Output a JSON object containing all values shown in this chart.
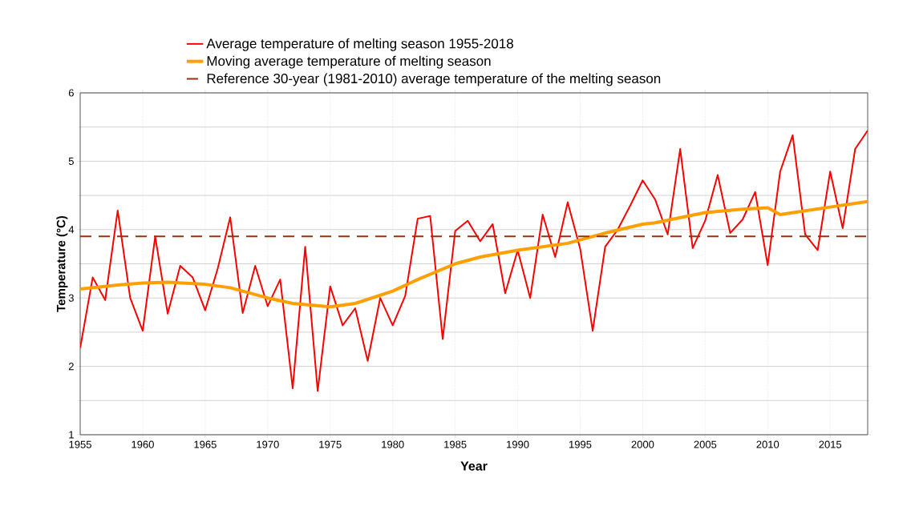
{
  "chart_data": {
    "type": "line",
    "xlabel": "Year",
    "ylabel": "Temperature (°C)",
    "xlim": [
      1955,
      2018
    ],
    "xticks": [
      1955,
      1960,
      1965,
      1970,
      1975,
      1980,
      1985,
      1990,
      1995,
      2000,
      2005,
      2010,
      2015
    ],
    "ylim": [
      1,
      6
    ],
    "yticks": [
      1,
      2,
      3,
      4,
      5,
      6
    ],
    "grid": true,
    "legend": "top",
    "series": [
      {
        "name": "Average temperature of melting season 1955-2018",
        "color": "#ff0000",
        "x": [
          1955,
          1956,
          1957,
          1958,
          1959,
          1960,
          1961,
          1962,
          1963,
          1964,
          1965,
          1966,
          1967,
          1968,
          1969,
          1970,
          1971,
          1972,
          1973,
          1974,
          1975,
          1976,
          1977,
          1978,
          1979,
          1980,
          1981,
          1982,
          1983,
          1984,
          1985,
          1986,
          1987,
          1988,
          1989,
          1990,
          1991,
          1992,
          1993,
          1994,
          1995,
          1996,
          1997,
          1998,
          1999,
          2000,
          2001,
          2002,
          2003,
          2004,
          2005,
          2006,
          2007,
          2008,
          2009,
          2010,
          2011,
          2012,
          2013,
          2014,
          2015,
          2016,
          2017,
          2018
        ],
        "values": [
          2.27,
          3.3,
          2.97,
          4.28,
          3.0,
          2.52,
          3.9,
          2.77,
          3.47,
          3.3,
          2.82,
          3.43,
          4.18,
          2.78,
          3.47,
          2.88,
          3.27,
          1.68,
          3.75,
          1.64,
          3.17,
          2.6,
          2.85,
          2.08,
          3.0,
          2.6,
          3.03,
          4.16,
          4.2,
          2.4,
          3.98,
          4.13,
          3.83,
          4.08,
          3.07,
          3.7,
          3.0,
          4.22,
          3.6,
          4.4,
          3.72,
          2.52,
          3.75,
          4.0,
          4.35,
          4.72,
          4.44,
          3.93,
          5.18,
          3.73,
          4.13,
          4.8,
          3.95,
          4.15,
          4.55,
          3.48,
          4.85,
          5.38,
          3.93,
          3.7,
          4.85,
          4.02,
          5.18,
          5.45
        ]
      },
      {
        "name": "Moving average temperature of melting season",
        "color": "#ffa000",
        "x": [
          1955,
          1958,
          1960,
          1962,
          1965,
          1967,
          1970,
          1972,
          1975,
          1977,
          1980,
          1982,
          1985,
          1987,
          1990,
          1994,
          1997,
          2000,
          2001,
          2005,
          2008,
          2010,
          2011,
          2015,
          2018
        ],
        "values": [
          3.13,
          3.19,
          3.22,
          3.23,
          3.2,
          3.15,
          3.0,
          2.92,
          2.87,
          2.92,
          3.1,
          3.27,
          3.5,
          3.6,
          3.7,
          3.8,
          3.95,
          4.08,
          4.1,
          4.25,
          4.3,
          4.32,
          4.22,
          4.33,
          4.41
        ]
      }
    ],
    "ref_lines": [
      {
        "axis": "y",
        "value": 3.9,
        "label": "Reference 30-year (1981-2010) average temperature of the melting season",
        "color": "#993300",
        "line_style": "dashed"
      }
    ]
  }
}
